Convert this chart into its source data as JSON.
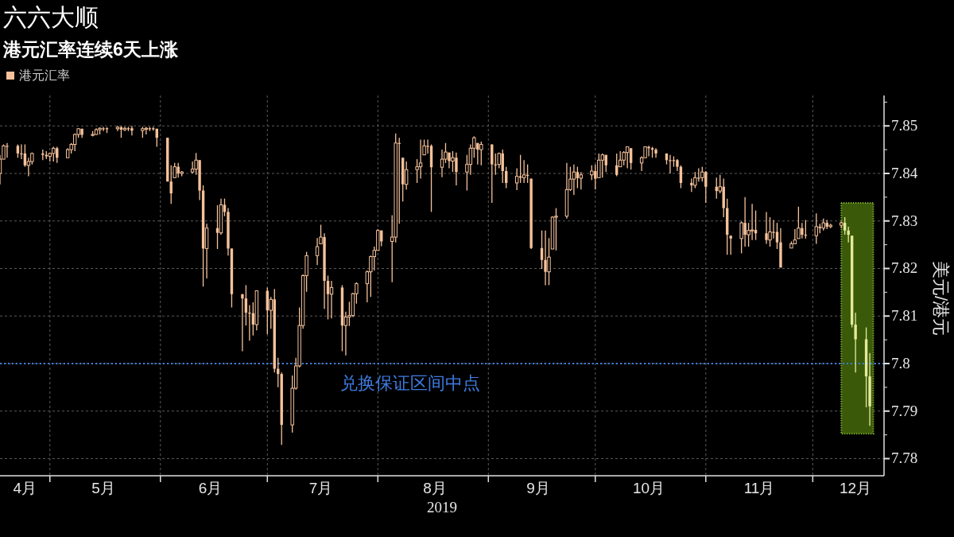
{
  "chart_data": {
    "type": "candlestick",
    "title": "六六大顺",
    "subtitle": "港元汇率连续6天上涨",
    "xlabel": "2019",
    "ylabel": "美元/港元",
    "series": [
      {
        "name": "港元汇率",
        "color": "#f6c29b",
        "x": [
          "2019-04-17",
          "2019-04-18",
          "2019-04-19",
          "2019-04-22",
          "2019-04-23",
          "2019-04-24",
          "2019-04-25",
          "2019-04-26",
          "2019-04-29",
          "2019-04-30",
          "2019-05-01",
          "2019-05-02",
          "2019-05-03",
          "2019-05-06",
          "2019-05-07",
          "2019-05-08",
          "2019-05-09",
          "2019-05-10",
          "2019-05-13",
          "2019-05-14",
          "2019-05-15",
          "2019-05-16",
          "2019-05-17",
          "2019-05-20",
          "2019-05-21",
          "2019-05-22",
          "2019-05-23",
          "2019-05-24",
          "2019-05-27",
          "2019-05-28",
          "2019-05-29",
          "2019-05-30",
          "2019-05-31",
          "2019-06-03",
          "2019-06-04",
          "2019-06-05",
          "2019-06-06",
          "2019-06-07",
          "2019-06-10",
          "2019-06-11",
          "2019-06-12",
          "2019-06-13",
          "2019-06-14",
          "2019-06-17",
          "2019-06-18",
          "2019-06-19",
          "2019-06-20",
          "2019-06-21",
          "2019-06-24",
          "2019-06-25",
          "2019-06-26",
          "2019-06-27",
          "2019-06-28",
          "2019-07-01",
          "2019-07-02",
          "2019-07-03",
          "2019-07-04",
          "2019-07-05",
          "2019-07-08",
          "2019-07-09",
          "2019-07-10",
          "2019-07-11",
          "2019-07-12",
          "2019-07-15",
          "2019-07-16",
          "2019-07-17",
          "2019-07-18",
          "2019-07-19",
          "2019-07-22",
          "2019-07-23",
          "2019-07-24",
          "2019-07-25",
          "2019-07-26",
          "2019-07-29",
          "2019-07-30",
          "2019-07-31",
          "2019-08-01",
          "2019-08-02",
          "2019-08-05",
          "2019-08-06",
          "2019-08-07",
          "2019-08-08",
          "2019-08-09",
          "2019-08-12",
          "2019-08-13",
          "2019-08-14",
          "2019-08-15",
          "2019-08-16",
          "2019-08-19",
          "2019-08-20",
          "2019-08-21",
          "2019-08-22",
          "2019-08-23",
          "2019-08-26",
          "2019-08-27",
          "2019-08-28",
          "2019-08-29",
          "2019-08-30",
          "2019-09-02",
          "2019-09-03",
          "2019-09-04",
          "2019-09-05",
          "2019-09-06",
          "2019-09-09",
          "2019-09-10",
          "2019-09-11",
          "2019-09-12",
          "2019-09-13",
          "2019-09-16",
          "2019-09-17",
          "2019-09-18",
          "2019-09-19",
          "2019-09-20",
          "2019-09-23",
          "2019-09-24",
          "2019-09-25",
          "2019-09-26",
          "2019-09-27",
          "2019-09-30",
          "2019-10-01",
          "2019-10-02",
          "2019-10-03",
          "2019-10-04",
          "2019-10-07",
          "2019-10-08",
          "2019-10-09",
          "2019-10-10",
          "2019-10-11",
          "2019-10-14",
          "2019-10-15",
          "2019-10-16",
          "2019-10-17",
          "2019-10-18",
          "2019-10-21",
          "2019-10-22",
          "2019-10-23",
          "2019-10-24",
          "2019-10-25",
          "2019-10-28",
          "2019-10-29",
          "2019-10-30",
          "2019-10-31",
          "2019-11-01",
          "2019-11-04",
          "2019-11-05",
          "2019-11-06",
          "2019-11-07",
          "2019-11-08",
          "2019-11-11",
          "2019-11-12",
          "2019-11-13",
          "2019-11-14",
          "2019-11-15",
          "2019-11-18",
          "2019-11-19",
          "2019-11-20",
          "2019-11-21",
          "2019-11-22",
          "2019-11-25",
          "2019-11-26",
          "2019-11-27",
          "2019-11-28",
          "2019-11-29",
          "2019-12-02",
          "2019-12-03",
          "2019-12-04",
          "2019-12-05",
          "2019-12-06",
          "2019-12-09"
        ],
        "ohlc": [
          [
            7.84,
            7.8439,
            7.8377,
            7.843
          ],
          [
            7.843,
            7.8461,
            7.843,
            7.8458
          ],
          [
            7.8458,
            7.8464,
            7.8433,
            7.8458
          ],
          [
            7.8458,
            7.8461,
            7.8433,
            7.8442
          ],
          [
            7.8442,
            7.8461,
            7.843,
            7.8442
          ],
          [
            7.8442,
            7.8461,
            7.8414,
            7.8417
          ],
          [
            7.8417,
            7.8433,
            7.8394,
            7.8425
          ],
          [
            7.8425,
            7.8444,
            7.8419,
            7.8442
          ],
          [
            7.8442,
            7.845,
            7.8428,
            7.8439
          ],
          [
            7.8439,
            7.8447,
            7.843,
            7.8436
          ],
          [
            7.8436,
            7.8444,
            7.8425,
            7.8442
          ],
          [
            7.8442,
            7.8456,
            7.8425,
            7.8453
          ],
          [
            7.8453,
            7.8456,
            7.8422,
            7.8433
          ],
          [
            7.8433,
            7.8453,
            7.8433,
            7.845
          ],
          [
            7.845,
            7.8464,
            7.8442,
            7.8461
          ],
          [
            7.8461,
            7.8484,
            7.8447,
            7.8482
          ],
          [
            7.8482,
            7.8495,
            7.8475,
            7.8494
          ],
          [
            7.8494,
            7.8494,
            7.8475,
            7.8481
          ],
          [
            7.8481,
            7.8489,
            7.8478,
            7.8482
          ],
          [
            7.8482,
            7.8495,
            7.8481,
            7.8492
          ],
          [
            7.8492,
            7.8497,
            7.8482,
            7.8495
          ],
          [
            7.8495,
            7.8498,
            7.8489,
            7.8495
          ],
          [
            7.8495,
            7.8497,
            7.8485,
            7.8494
          ],
          [
            7.8494,
            7.85,
            7.8489,
            7.8497
          ],
          [
            7.8497,
            7.85,
            7.8475,
            7.8492
          ],
          [
            7.8492,
            7.8498,
            7.8489,
            7.8495
          ],
          [
            7.8495,
            7.8498,
            7.8489,
            7.8495
          ],
          [
            7.8495,
            7.85,
            7.848,
            7.849
          ],
          [
            7.849,
            7.8498,
            7.8475,
            7.8494
          ],
          [
            7.8494,
            7.8498,
            7.8482,
            7.8495
          ],
          [
            7.8495,
            7.8498,
            7.8489,
            7.8495
          ],
          [
            7.8495,
            7.8498,
            7.849,
            7.8494
          ],
          [
            7.8494,
            7.8494,
            7.8456,
            7.8475
          ],
          [
            7.8475,
            7.8475,
            7.8383,
            7.8383
          ],
          [
            7.8383,
            7.8417,
            7.8336,
            7.8358
          ],
          [
            7.8391,
            7.8422,
            7.8391,
            7.8414
          ],
          [
            7.8414,
            7.8422,
            7.8391,
            7.84
          ],
          [
            7.84,
            7.8405,
            7.8394,
            7.8403
          ],
          [
            7.8403,
            7.8425,
            7.84,
            7.8409
          ],
          [
            7.8409,
            7.8443,
            7.8397,
            7.8428
          ],
          [
            7.8428,
            7.8428,
            7.8344,
            7.8364
          ],
          [
            7.8364,
            7.8375,
            7.8162,
            7.8242
          ],
          [
            7.8242,
            7.8294,
            7.8179,
            7.8285
          ],
          [
            7.8285,
            7.8333,
            7.8241,
            7.8275
          ],
          [
            7.8275,
            7.8347,
            7.8271,
            7.8334
          ],
          [
            7.8334,
            7.8347,
            7.831,
            7.8319
          ],
          [
            7.8319,
            7.8327,
            7.8227,
            7.8242
          ],
          [
            7.8242,
            7.8242,
            7.8118,
            7.8146
          ],
          [
            7.8146,
            7.8146,
            7.8026,
            7.8137
          ],
          [
            7.8137,
            7.8165,
            7.808,
            7.8107
          ],
          [
            7.8107,
            7.8123,
            7.8048,
            7.8106
          ],
          [
            7.8106,
            7.8129,
            7.8059,
            7.8082
          ],
          [
            7.8082,
            7.8154,
            7.807,
            7.8153
          ],
          [
            7.8153,
            7.816,
            7.8062,
            7.8112
          ],
          [
            7.8112,
            7.814,
            7.8073,
            7.8135
          ],
          [
            7.8135,
            7.8157,
            7.7981,
            7.7989
          ],
          [
            7.7989,
            7.8012,
            7.795,
            7.7978
          ],
          [
            7.7978,
            7.7981,
            7.7829,
            7.7871
          ],
          [
            7.7871,
            7.7975,
            7.7855,
            7.7948
          ],
          [
            7.7948,
            7.8012,
            7.7945,
            7.7995
          ],
          [
            7.7995,
            7.8118,
            7.7992,
            7.808
          ],
          [
            7.808,
            7.8188,
            7.8073,
            7.8185
          ],
          [
            7.8185,
            7.8235,
            7.8151,
            7.8227
          ],
          [
            7.8227,
            7.8264,
            7.8207,
            7.8246
          ],
          [
            7.8252,
            7.8292,
            7.8252,
            7.8266
          ],
          [
            7.8266,
            7.8274,
            7.8115,
            7.8174
          ],
          [
            7.8174,
            7.8185,
            7.8093,
            7.8146
          ],
          [
            7.8146,
            7.8174,
            7.8095,
            7.816
          ],
          [
            7.816,
            7.8165,
            7.8026,
            7.808
          ],
          [
            7.808,
            7.8109,
            7.8017,
            7.8098
          ],
          [
            7.8098,
            7.813,
            7.8079,
            7.8101
          ],
          [
            7.8101,
            7.8149,
            7.8098,
            7.8147
          ],
          [
            7.8147,
            7.8171,
            7.8126,
            7.8168
          ],
          [
            7.8168,
            7.8196,
            7.8129,
            7.8193
          ],
          [
            7.8193,
            7.8227,
            7.814,
            7.8225
          ],
          [
            7.8225,
            7.8246,
            7.8196,
            7.8238
          ],
          [
            7.8238,
            7.8283,
            7.8238,
            7.828
          ],
          [
            7.828,
            7.828,
            7.8247,
            7.8257
          ],
          [
            7.8257,
            7.8312,
            7.8171,
            7.8266
          ],
          [
            7.8266,
            7.8484,
            7.8255,
            7.8464
          ],
          [
            7.8464,
            7.8475,
            7.8294,
            7.8463
          ],
          [
            7.8433,
            7.8433,
            7.8341,
            7.8377
          ],
          [
            7.8377,
            7.8425,
            7.8366,
            7.8408
          ],
          [
            7.8408,
            7.843,
            7.838,
            7.8414
          ],
          [
            7.8414,
            7.8471,
            7.8389,
            7.8422
          ],
          [
            7.8439,
            7.8471,
            7.8439,
            7.8458
          ],
          [
            7.8458,
            7.8471,
            7.8442,
            7.8458
          ],
          [
            7.8458,
            7.8461,
            7.8319,
            7.8413
          ],
          [
            7.8413,
            7.845,
            7.8392,
            7.843
          ],
          [
            7.843,
            7.8464,
            7.8422,
            7.8445
          ],
          [
            7.8444,
            7.8444,
            7.8411,
            7.8426
          ],
          [
            7.8426,
            7.8447,
            7.8403,
            7.8433
          ],
          [
            7.8433,
            7.8444,
            7.8375,
            7.8403
          ],
          [
            7.8403,
            7.8439,
            7.8364,
            7.8419
          ],
          [
            7.8419,
            7.8461,
            7.8397,
            7.8453
          ],
          [
            7.8453,
            7.8478,
            7.8433,
            7.8475
          ],
          [
            7.8464,
            7.8464,
            7.8419,
            7.845
          ],
          [
            7.845,
            7.8467,
            7.8417,
            7.8461
          ],
          [
            7.8461,
            7.8461,
            7.8338,
            7.8419
          ],
          [
            7.8419,
            7.8442,
            7.8397,
            7.8419
          ],
          [
            7.8419,
            7.8444,
            7.8411,
            7.8442
          ],
          [
            7.8442,
            7.845,
            7.838,
            7.8405
          ],
          [
            7.8405,
            7.8414,
            7.8369,
            7.838
          ],
          [
            7.838,
            7.8411,
            7.8365,
            7.8394
          ],
          [
            7.8394,
            7.8439,
            7.838,
            7.8391
          ],
          [
            7.8391,
            7.8428,
            7.838,
            7.8397
          ],
          [
            7.8397,
            7.8419,
            7.838,
            7.8397
          ],
          [
            7.8389,
            7.8389,
            7.8241,
            7.8243
          ],
          [
            7.8243,
            7.828,
            7.8199,
            7.8218
          ],
          [
            7.8218,
            7.828,
            7.8165,
            7.8193
          ],
          [
            7.8193,
            7.8264,
            7.8165,
            7.8224
          ],
          [
            7.8241,
            7.831,
            7.8241,
            7.8308
          ],
          [
            7.8308,
            7.8327,
            7.8238,
            7.831
          ],
          [
            7.831,
            7.8422,
            7.8305,
            7.8366
          ],
          [
            7.8366,
            7.8414,
            7.8363,
            7.8388
          ],
          [
            7.8388,
            7.8419,
            7.8355,
            7.8403
          ],
          [
            7.8403,
            7.8414,
            7.8369,
            7.839
          ],
          [
            7.839,
            7.8403,
            7.8366,
            7.8397
          ],
          [
            7.8397,
            7.8417,
            7.8386,
            7.8405
          ],
          [
            7.8405,
            7.8419,
            7.8366,
            7.8389
          ],
          [
            7.8391,
            7.8442,
            7.8391,
            7.8428
          ],
          [
            7.8428,
            7.8442,
            7.8391,
            7.8439
          ],
          [
            7.8439,
            7.8439,
            7.8403,
            7.8417
          ],
          [
            7.8417,
            7.8442,
            7.8394,
            7.8397
          ],
          [
            7.8414,
            7.8447,
            7.8414,
            7.8428
          ],
          [
            7.8428,
            7.8447,
            7.8417,
            7.8444
          ],
          [
            7.8444,
            7.8456,
            7.8411,
            7.8456
          ],
          [
            7.8453,
            7.8453,
            7.8408,
            7.8422
          ],
          [
            7.8422,
            7.8436,
            7.8405,
            7.8433
          ],
          [
            7.8433,
            7.8456,
            7.8433,
            7.8456
          ],
          [
            7.8456,
            7.8458,
            7.8436,
            7.8453
          ],
          [
            7.8453,
            7.8456,
            7.8433,
            7.845
          ],
          [
            7.845,
            7.8453,
            7.8433,
            7.8442
          ],
          [
            7.8442,
            7.8442,
            7.8419,
            7.8428
          ],
          [
            7.8428,
            7.8439,
            7.84,
            7.8428
          ],
          [
            7.8428,
            7.8436,
            7.8414,
            7.8428
          ],
          [
            7.8428,
            7.843,
            7.8405,
            7.8414
          ],
          [
            7.8414,
            7.8417,
            7.8369,
            7.838
          ],
          [
            7.838,
            7.8389,
            7.8361,
            7.8375
          ],
          [
            7.8375,
            7.8403,
            7.8369,
            7.8391
          ],
          [
            7.8391,
            7.8411,
            7.8383,
            7.8391
          ],
          [
            7.8391,
            7.8414,
            7.8383,
            7.8403
          ],
          [
            7.8403,
            7.8405,
            7.8338,
            7.8372
          ],
          [
            7.8372,
            7.8391,
            7.8347,
            7.8363
          ],
          [
            7.8363,
            7.8397,
            7.8358,
            7.8372
          ],
          [
            7.8372,
            7.8389,
            7.8308,
            7.8327
          ],
          [
            7.8327,
            7.8347,
            7.8229,
            7.8271
          ],
          [
            7.8269,
            7.8269,
            7.8229,
            7.8263
          ],
          [
            7.8263,
            7.8299,
            7.8232,
            7.8296
          ],
          [
            7.8296,
            7.835,
            7.8246,
            7.8271
          ],
          [
            7.8271,
            7.8296,
            7.8246,
            7.828
          ],
          [
            7.828,
            7.8336,
            7.826,
            7.8281
          ],
          [
            7.8281,
            7.8322,
            7.826,
            7.8274
          ],
          [
            7.8274,
            7.8319,
            7.8252,
            7.826
          ],
          [
            7.826,
            7.8308,
            7.8246,
            7.8277
          ],
          [
            7.8277,
            7.8302,
            7.8263,
            7.8277
          ],
          [
            7.8277,
            7.8296,
            7.8241,
            7.8255
          ],
          [
            7.8255,
            7.8285,
            7.8202,
            7.8202
          ],
          [
            7.8243,
            7.8257,
            7.8243,
            7.8252
          ],
          [
            7.8252,
            7.8283,
            7.8252,
            7.826
          ],
          [
            7.8263,
            7.833,
            7.8263,
            7.8285
          ],
          [
            7.8285,
            7.8296,
            7.8263,
            7.8271
          ],
          [
            7.8271,
            7.8302,
            7.8263,
            7.8269
          ],
          [
            7.8269,
            7.8316,
            7.8252,
            7.8288
          ],
          [
            7.8288,
            7.8294,
            7.8274,
            7.8285
          ],
          [
            7.8285,
            7.8305,
            7.828,
            7.8296
          ],
          [
            7.8296,
            7.8302,
            7.8283,
            7.8288
          ],
          [
            7.8288,
            7.8294,
            7.8285,
            7.8291
          ],
          [
            7.8291,
            7.8299,
            7.8285,
            7.8296
          ]
        ]
      },
      {
        "color": "#e3ea9a",
        "x": [
          "2019-12-10",
          "2019-12-11",
          "2019-12-12",
          "2019-12-13",
          "2019-12-16",
          "2019-12-17"
        ],
        "ohlc": [
          [
            7.8296,
            7.8308,
            7.8271,
            7.828
          ],
          [
            7.828,
            7.8288,
            7.8255,
            7.8271
          ],
          [
            7.8269,
            7.8269,
            7.8076,
            7.8082
          ],
          [
            7.8082,
            7.8107,
            7.7981,
            7.8051
          ],
          [
            7.8051,
            7.8076,
            7.7908,
            7.7973
          ],
          [
            7.7973,
            7.8022,
            7.7869,
            7.791
          ]
        ]
      }
    ],
    "xlim": [
      "2019-04-17",
      "2019-12-21"
    ],
    "xticks": [
      {
        "value": "2019-04-24",
        "label": "4月"
      },
      {
        "value": "2019-05-01",
        "label": null
      },
      {
        "value": "2019-05-16",
        "label": "5月"
      },
      {
        "value": "2019-06-01",
        "label": null
      },
      {
        "value": "2019-06-15",
        "label": "6月"
      },
      {
        "value": "2019-07-01",
        "label": null
      },
      {
        "value": "2019-07-16",
        "label": "7月"
      },
      {
        "value": "2019-08-01",
        "label": null
      },
      {
        "value": "2019-08-17",
        "label": "8月"
      },
      {
        "value": "2019-09-01",
        "label": null
      },
      {
        "value": "2019-09-15",
        "label": "9月"
      },
      {
        "value": "2019-10-01",
        "label": null
      },
      {
        "value": "2019-10-16",
        "label": "10月"
      },
      {
        "value": "2019-11-01",
        "label": null
      },
      {
        "value": "2019-11-16",
        "label": "11月"
      },
      {
        "value": "2019-12-01",
        "label": null
      },
      {
        "value": "2019-12-13",
        "label": "12月"
      }
    ],
    "ylim": [
      7.7764,
      7.8564
    ],
    "yticks": [
      7.78,
      {
        "value": 7.785,
        "label": null
      },
      7.79,
      {
        "value": 7.795,
        "label": null
      },
      7.8,
      {
        "value": 7.805,
        "label": null
      },
      7.81,
      {
        "value": 7.815,
        "label": null
      },
      7.82,
      {
        "value": 7.825,
        "label": null
      },
      7.83,
      {
        "value": 7.835,
        "label": null
      },
      7.84,
      {
        "value": 7.845,
        "label": null
      },
      7.85,
      {
        "value": 7.855,
        "label": null
      }
    ],
    "ref_lines": [
      {
        "axis": "y",
        "value": 7.8,
        "label": "兑换保证区间中点",
        "color": "#3d7be0",
        "line_style": "dotted"
      }
    ],
    "bands": [
      {
        "axis": "x",
        "from": "2019-12-09",
        "to": "2019-12-18",
        "color": "#3a5a0a"
      }
    ],
    "grid": true,
    "legend": "top left"
  }
}
